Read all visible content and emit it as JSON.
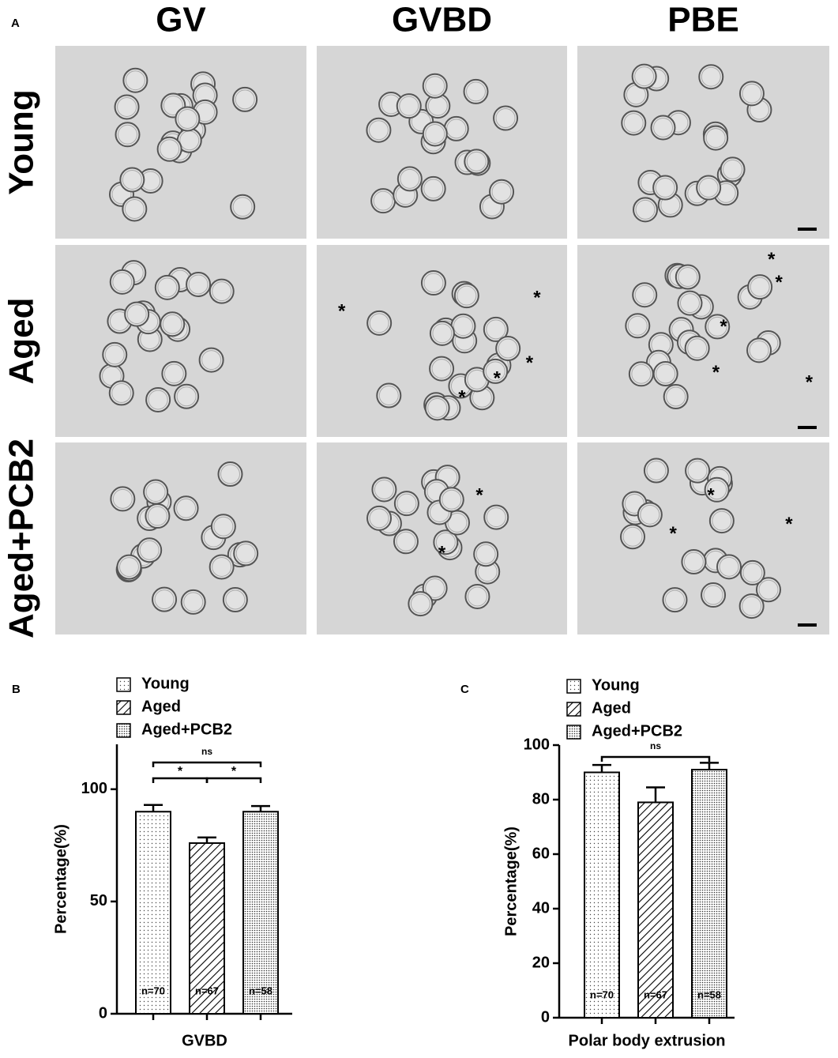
{
  "panel_a": {
    "panel": "A",
    "columns": [
      "GV",
      "GVBD",
      "PBE"
    ],
    "rows": [
      "Young",
      "Aged",
      "Aged+PCB2"
    ],
    "marker": "*"
  },
  "chart_data": [
    {
      "type": "bar",
      "panel": "B",
      "x_label": "GVBD",
      "y_label": "Percentage(%)",
      "ylim": [
        0,
        120
      ],
      "yticks": [
        0,
        50,
        100
      ],
      "series": [
        {
          "name": "Young",
          "pattern": "dots",
          "values": [
            90
          ],
          "errors": [
            3
          ],
          "n_label": "n=70"
        },
        {
          "name": "Aged",
          "pattern": "hatch",
          "values": [
            76
          ],
          "errors": [
            2.5
          ],
          "n_label": "n=67"
        },
        {
          "name": "Aged+PCB2",
          "pattern": "dense",
          "values": [
            90
          ],
          "errors": [
            2.5
          ],
          "n_label": "n=58"
        }
      ],
      "significance_labels": [
        "ns",
        "*",
        "*"
      ]
    },
    {
      "type": "bar",
      "panel": "C",
      "x_label": "Polar body extrusion",
      "y_label": "Percentage(%)",
      "ylim": [
        0,
        100
      ],
      "yticks": [
        0,
        20,
        40,
        60,
        80,
        100
      ],
      "series": [
        {
          "name": "Young",
          "pattern": "dots",
          "values": [
            90
          ],
          "errors": [
            2.7
          ],
          "n_label": "n=70"
        },
        {
          "name": "Aged",
          "pattern": "hatch",
          "values": [
            79
          ],
          "errors": [
            5.5
          ],
          "n_label": "n=67"
        },
        {
          "name": "Aged+PCB2",
          "pattern": "dense",
          "values": [
            91
          ],
          "errors": [
            2.5
          ],
          "n_label": "n=58"
        }
      ],
      "significance_labels": [
        "ns"
      ]
    }
  ]
}
